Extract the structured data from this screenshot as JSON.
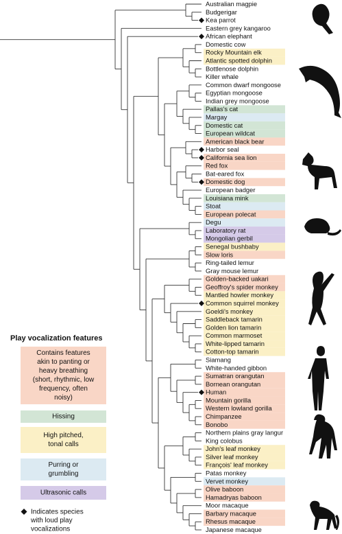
{
  "species": [
    {
      "name": "Australian magpie",
      "feature": null,
      "loud": false
    },
    {
      "name": "Budgerigar",
      "feature": null,
      "loud": false
    },
    {
      "name": "Kea parrot",
      "feature": null,
      "loud": true
    },
    {
      "name": "Eastern grey kangaroo",
      "feature": null,
      "loud": false
    },
    {
      "name": "African elephant",
      "feature": null,
      "loud": true
    },
    {
      "name": "Domestic cow",
      "feature": null,
      "loud": false
    },
    {
      "name": "Rocky Mountain elk",
      "feature": 2,
      "loud": false
    },
    {
      "name": "Atlantic spotted dolphin",
      "feature": 2,
      "loud": false
    },
    {
      "name": "Bottlenose dolphin",
      "feature": null,
      "loud": false
    },
    {
      "name": "Killer whale",
      "feature": null,
      "loud": false
    },
    {
      "name": "Common dwarf mongoose",
      "feature": null,
      "loud": false
    },
    {
      "name": "Egyptian mongoose",
      "feature": null,
      "loud": false
    },
    {
      "name": "Indian grey mongoose",
      "feature": null,
      "loud": false
    },
    {
      "name": "Pallas's cat",
      "feature": 1,
      "loud": false
    },
    {
      "name": "Margay",
      "feature": 3,
      "loud": false
    },
    {
      "name": "Domestic cat",
      "feature": 1,
      "loud": false
    },
    {
      "name": "European wildcat",
      "feature": 1,
      "loud": false
    },
    {
      "name": "American black bear",
      "feature": 0,
      "loud": false
    },
    {
      "name": "Harbor seal",
      "feature": null,
      "loud": true
    },
    {
      "name": "California sea lion",
      "feature": 0,
      "loud": true
    },
    {
      "name": "Red fox",
      "feature": 0,
      "loud": false
    },
    {
      "name": "Bat-eared fox",
      "feature": null,
      "loud": false
    },
    {
      "name": "Domestic dog",
      "feature": 0,
      "loud": true
    },
    {
      "name": "European badger",
      "feature": null,
      "loud": false
    },
    {
      "name": "Louisiana mink",
      "feature": 1,
      "loud": false
    },
    {
      "name": "Stoat",
      "feature": 3,
      "loud": false
    },
    {
      "name": "European polecat",
      "feature": 0,
      "loud": false
    },
    {
      "name": "Degu",
      "feature": 3,
      "loud": false
    },
    {
      "name": "Laboratory rat",
      "feature": 4,
      "loud": false
    },
    {
      "name": "Mongolian gerbil",
      "feature": 4,
      "loud": false
    },
    {
      "name": "Senegal bushbaby",
      "feature": 2,
      "loud": false
    },
    {
      "name": "Slow loris",
      "feature": 0,
      "loud": false
    },
    {
      "name": "Ring-tailed lemur",
      "feature": null,
      "loud": false
    },
    {
      "name": "Gray mouse lemur",
      "feature": null,
      "loud": false
    },
    {
      "name": "Golden-backed uakari",
      "feature": 0,
      "loud": false
    },
    {
      "name": "Geoffroy's spider monkey",
      "feature": 0,
      "loud": false
    },
    {
      "name": "Mantled howler monkey",
      "feature": 2,
      "loud": false
    },
    {
      "name": "Common squirrel monkey",
      "feature": 2,
      "loud": true
    },
    {
      "name": "Goeldi's monkey",
      "feature": 2,
      "loud": false
    },
    {
      "name": "Saddleback tamarin",
      "feature": 2,
      "loud": false
    },
    {
      "name": "Golden lion tamarin",
      "feature": 2,
      "loud": false
    },
    {
      "name": "Common marmoset",
      "feature": 2,
      "loud": false
    },
    {
      "name": "White-lipped tamarin",
      "feature": 2,
      "loud": false
    },
    {
      "name": "Cotton-top tamarin",
      "feature": 2,
      "loud": false
    },
    {
      "name": "Siamang",
      "feature": null,
      "loud": false
    },
    {
      "name": "White-handed gibbon",
      "feature": null,
      "loud": false
    },
    {
      "name": "Sumatran orangutan",
      "feature": 0,
      "loud": false
    },
    {
      "name": "Bornean orangutan",
      "feature": 0,
      "loud": false
    },
    {
      "name": "Human",
      "feature": 0,
      "loud": true
    },
    {
      "name": "Mountain gorilla",
      "feature": 0,
      "loud": false
    },
    {
      "name": "Western lowland gorilla",
      "feature": 0,
      "loud": false
    },
    {
      "name": "Chimpanzee",
      "feature": 0,
      "loud": false
    },
    {
      "name": "Bonobo",
      "feature": 0,
      "loud": false
    },
    {
      "name": "Northern plains gray langur",
      "feature": null,
      "loud": false
    },
    {
      "name": "King colobus",
      "feature": null,
      "loud": false
    },
    {
      "name": "John's leaf monkey",
      "feature": 2,
      "loud": false
    },
    {
      "name": "Silver leaf monkey",
      "feature": 2,
      "loud": false
    },
    {
      "name": "François' leaf monkey",
      "feature": 2,
      "loud": false
    },
    {
      "name": "Patas monkey",
      "feature": null,
      "loud": false
    },
    {
      "name": "Vervet monkey",
      "feature": 3,
      "loud": false
    },
    {
      "name": "Olive baboon",
      "feature": 0,
      "loud": false
    },
    {
      "name": "Hamadryas baboon",
      "feature": 0,
      "loud": false
    },
    {
      "name": "Moor macaque",
      "feature": null,
      "loud": false
    },
    {
      "name": "Barbary macaque",
      "feature": 0,
      "loud": false
    },
    {
      "name": "Rhesus macaque",
      "feature": 0,
      "loud": false
    },
    {
      "name": "Japanese macaque",
      "feature": null,
      "loud": false
    }
  ],
  "legend": {
    "title": "Play vocalization features",
    "features": [
      {
        "lines": [
          "Contains features",
          "akin to panting or",
          "heavy breathing",
          "(short, rhythmic, low",
          "frequency, often",
          "noisy)"
        ],
        "color": "#f9d6c6"
      },
      {
        "lines": [
          "Hissing"
        ],
        "color": "#d2e5d5"
      },
      {
        "lines": [
          "High pitched,",
          "tonal calls"
        ],
        "color": "#fbf0c6"
      },
      {
        "lines": [
          "Purring or",
          "grumbling"
        ],
        "color": "#dceaf2"
      },
      {
        "lines": [
          "Ultrasonic calls"
        ],
        "color": "#d5cae8"
      }
    ],
    "loud_note": [
      "Indicates species",
      "with loud play",
      "vocalizations"
    ]
  }
}
